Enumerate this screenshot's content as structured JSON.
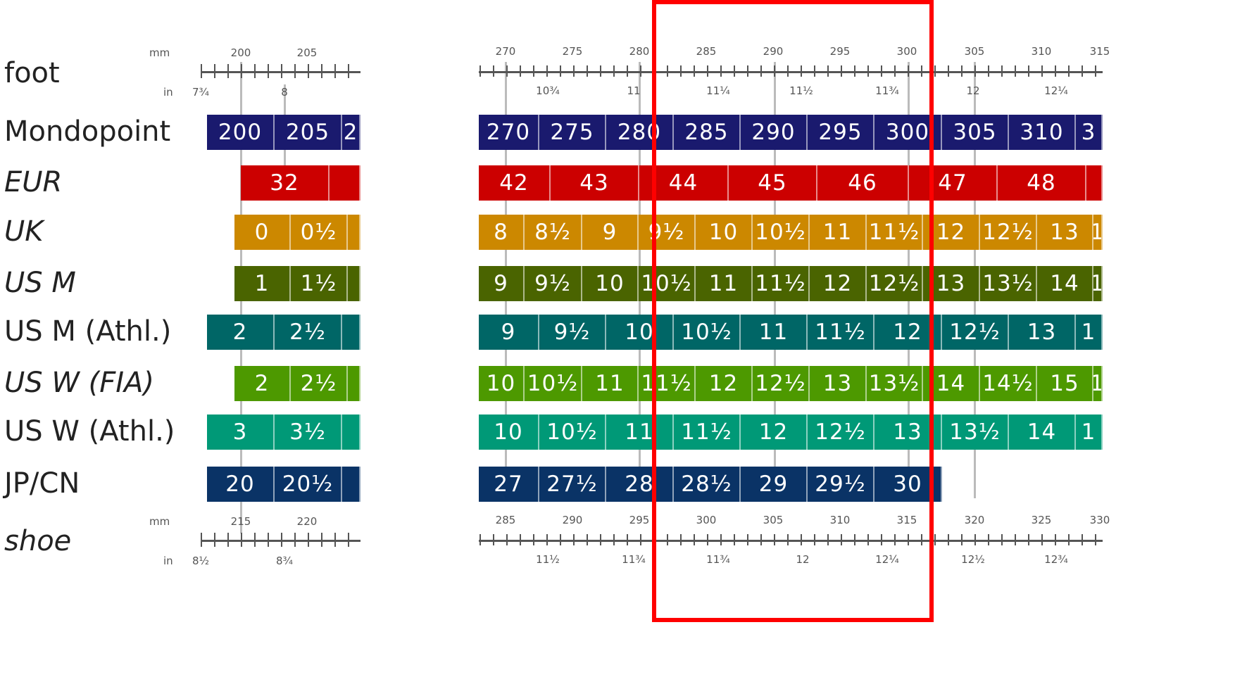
{
  "colors": {
    "mondopoint": "#1a1a6e",
    "eur": "#cc0000",
    "uk": "#cc8800",
    "us_m": "#4a6400",
    "us_m_athl": "#006666",
    "us_w_fia": "#4d9900",
    "us_w_athl": "#009977",
    "jp_cn": "#0a3366",
    "highlight": "#ff0000"
  },
  "chart_data": {
    "type": "table",
    "rows": [
      {
        "key": "foot",
        "label": "foot",
        "italic": false
      },
      {
        "key": "mondopoint",
        "label": "Mondopoint",
        "italic": false
      },
      {
        "key": "eur",
        "label": "EUR",
        "italic": true
      },
      {
        "key": "uk",
        "label": "UK",
        "italic": true
      },
      {
        "key": "us_m",
        "label": "US M",
        "italic": true
      },
      {
        "key": "us_m_athl",
        "label": "US M (Athl.)",
        "italic": false
      },
      {
        "key": "us_w_fia",
        "label": "US W (FIA)",
        "italic": true
      },
      {
        "key": "us_w_athl",
        "label": "US W (Athl.)",
        "italic": false
      },
      {
        "key": "jp_cn",
        "label": "JP/CN",
        "italic": false
      },
      {
        "key": "shoe",
        "label": "shoe",
        "italic": true
      }
    ],
    "foot_axis": {
      "unit_top": "mm",
      "unit_bottom": "in",
      "left_mm_labels": [
        "200",
        "205"
      ],
      "right_mm_labels": [
        "270",
        "275",
        "280",
        "285",
        "290",
        "295",
        "300",
        "305",
        "310",
        "315"
      ],
      "left_in_labels": [
        "7¾",
        "8"
      ],
      "right_in_labels": [
        "10¾",
        "11",
        "11¼",
        "11½",
        "11¾",
        "12",
        "12¼"
      ]
    },
    "shoe_axis": {
      "unit_top": "mm",
      "unit_bottom": "in",
      "left_mm_labels": [
        "215",
        "220"
      ],
      "right_mm_labels": [
        "285",
        "290",
        "295",
        "300",
        "305",
        "310",
        "315",
        "320",
        "325",
        "330"
      ],
      "left_in_labels": [
        "8½",
        "8¾"
      ],
      "right_in_labels": [
        "11½",
        "11¾",
        "11¾",
        "12",
        "12¼",
        "12½",
        "12¾"
      ]
    },
    "left_panel": {
      "mondopoint": [
        "200",
        "205",
        "2"
      ],
      "eur": [
        "32",
        ""
      ],
      "uk": [
        "0",
        "0½",
        ""
      ],
      "us_m": [
        "1",
        "1½",
        ""
      ],
      "us_m_athl": [
        "2",
        "2½",
        ""
      ],
      "us_w_fia": [
        "2",
        "2½",
        ""
      ],
      "us_w_athl": [
        "3",
        "3½",
        ""
      ],
      "jp_cn": [
        "20",
        "20½",
        ""
      ]
    },
    "right_panel": {
      "mondopoint": [
        "270",
        "275",
        "280",
        "285",
        "290",
        "295",
        "300",
        "305",
        "310",
        "3"
      ],
      "eur": [
        "42",
        "43",
        "44",
        "45",
        "46",
        "47",
        "48",
        ""
      ],
      "uk": [
        "8",
        "8½",
        "9",
        "9½",
        "10",
        "10½",
        "11",
        "11½",
        "12",
        "12½",
        "13",
        "1"
      ],
      "us_m": [
        "9",
        "9½",
        "10",
        "10½",
        "11",
        "11½",
        "12",
        "12½",
        "13",
        "13½",
        "14",
        "1"
      ],
      "us_m_athl": [
        "9",
        "9½",
        "10",
        "10½",
        "11",
        "11½",
        "12",
        "12½",
        "13",
        "1"
      ],
      "us_w_fia": [
        "10",
        "10½",
        "11",
        "11½",
        "12",
        "12½",
        "13",
        "13½",
        "14",
        "14½",
        "15",
        "1"
      ],
      "us_w_athl": [
        "10",
        "10½",
        "11",
        "11½",
        "12",
        "12½",
        "13",
        "13½",
        "14",
        "1"
      ],
      "jp_cn": [
        "27",
        "27½",
        "28",
        "28½",
        "29",
        "29½",
        "30"
      ]
    }
  }
}
